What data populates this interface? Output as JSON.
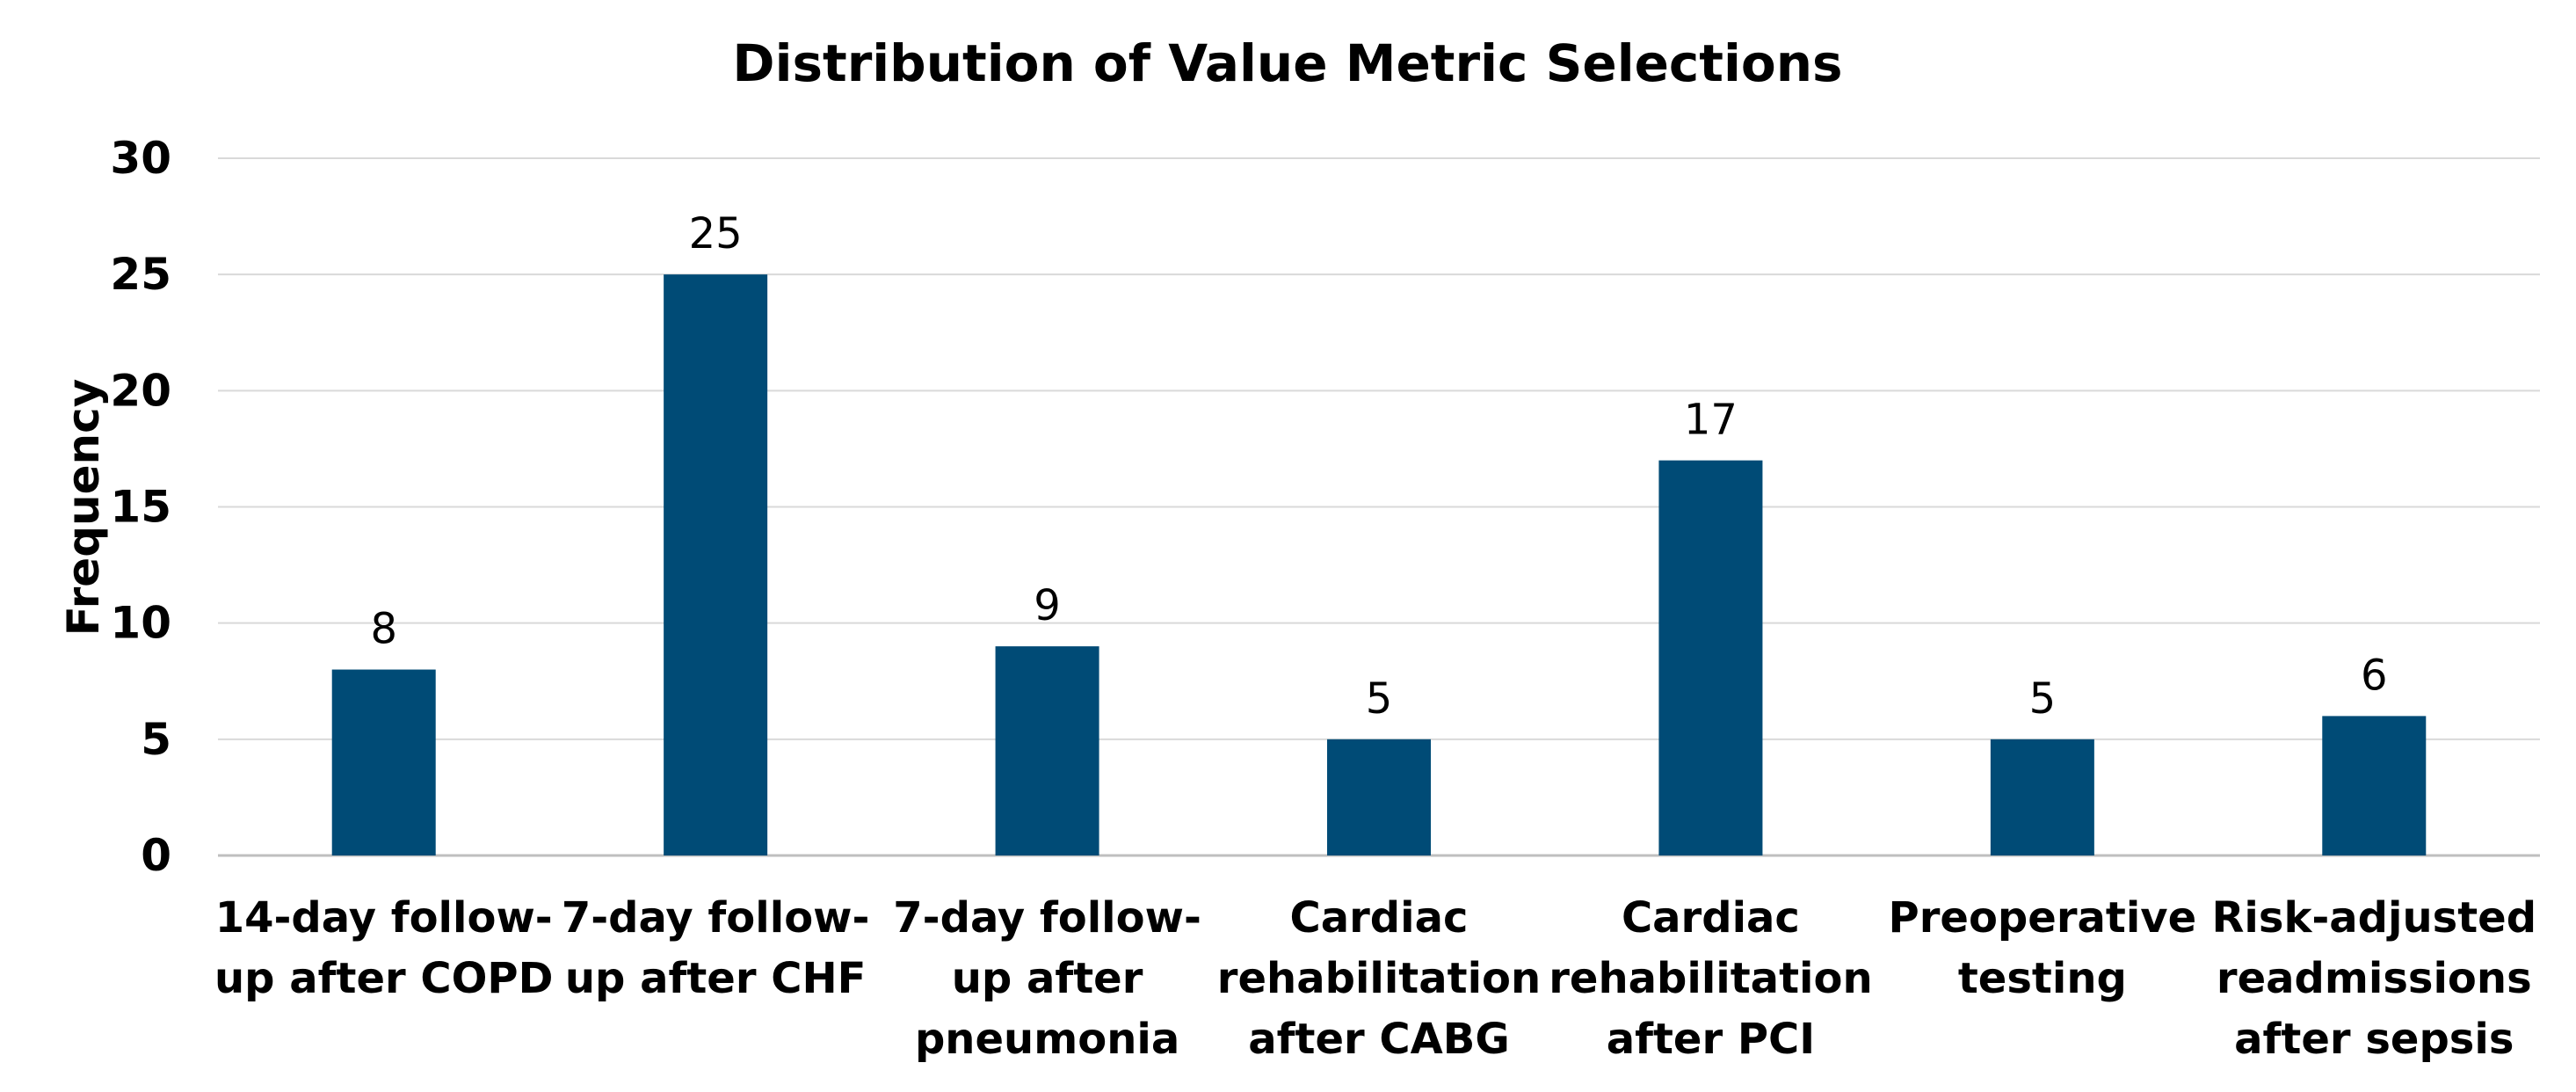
{
  "chart_data": {
    "type": "bar",
    "title": "Distribution of Value Metric Selections",
    "xlabel": "",
    "ylabel": "Frequency",
    "ylim": [
      0,
      30
    ],
    "yticks": [
      0,
      5,
      10,
      15,
      20,
      25,
      30
    ],
    "grid": true,
    "legend": "none",
    "bar_color": "#004B76",
    "categories": [
      [
        "14-day follow-",
        "up after COPD"
      ],
      [
        "7-day follow-",
        "up after CHF"
      ],
      [
        "7-day follow-",
        "up after",
        "pneumonia"
      ],
      [
        "Cardiac",
        "rehabilitation",
        "after CABG"
      ],
      [
        "Cardiac",
        "rehabilitation",
        "after PCI"
      ],
      [
        "Preoperative",
        "testing"
      ],
      [
        "Risk-adjusted",
        "readmissions",
        "after sepsis"
      ]
    ],
    "values": [
      8,
      25,
      9,
      5,
      17,
      5,
      6
    ]
  }
}
